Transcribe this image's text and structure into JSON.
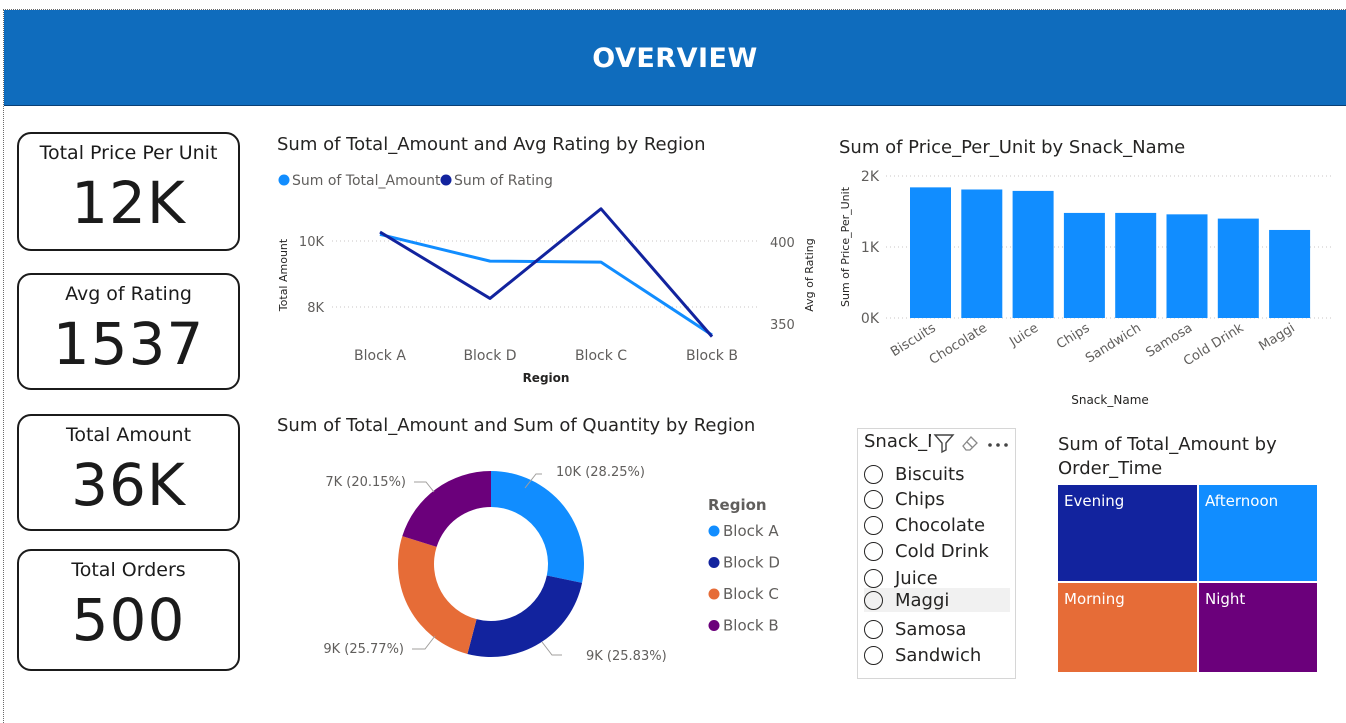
{
  "header": {
    "title": "OVERVIEW"
  },
  "kpis": [
    {
      "label": "Total Price Per Unit",
      "value": "12K"
    },
    {
      "label": "Avg of Rating",
      "value": "1537"
    },
    {
      "label": "Total Amount",
      "value": "36K"
    },
    {
      "label": "Total Orders",
      "value": "500"
    }
  ],
  "colors": {
    "header_bg": "#0f6cbd",
    "series_light": "#118dff",
    "series_dark": "#12239e",
    "orange": "#e66c37",
    "purple": "#6b007b"
  },
  "line_chart": {
    "title": "Sum of Total_Amount and Avg Rating by Region"
  },
  "bar_chart": {
    "title": "Sum of Price_Per_Unit by Snack_Name"
  },
  "donut_chart": {
    "title": "Sum of Total_Amount and Sum of Quantity by Region"
  },
  "treemap_chart": {
    "title_line1": "Sum of Total_Amount by",
    "title_line2": "Order_Time"
  },
  "slicer": {
    "title": "Snack_Name",
    "items": [
      "Biscuits",
      "Chips",
      "Chocolate",
      "Cold Drink",
      "Juice",
      "Maggi",
      "Samosa",
      "Sandwich"
    ]
  },
  "chart_data": [
    {
      "type": "line",
      "title": "Sum of Total_Amount and Avg Rating by Region",
      "categories": [
        "Block A",
        "Block D",
        "Block C",
        "Block B"
      ],
      "xlabel": "Region",
      "ylabel": "Total Amount",
      "y2label": "Avg of Rating",
      "yticks": [
        "8K",
        "10K"
      ],
      "y2ticks": [
        "350",
        "400"
      ],
      "legend_position": "top-left",
      "series": [
        {
          "name": "Sum of Total_Amount",
          "axis": "left",
          "color": "#118dff",
          "values": [
            10200,
            9390,
            9360,
            7150
          ]
        },
        {
          "name": "Sum of Rating",
          "axis": "right",
          "color": "#12239e",
          "values": [
            406,
            366,
            420,
            343
          ]
        }
      ]
    },
    {
      "type": "bar",
      "title": "Sum of Price_Per_Unit by Snack_Name",
      "categories": [
        "Biscuits",
        "Chocolate",
        "Juice",
        "Chips",
        "Sandwich",
        "Samosa",
        "Cold Drink",
        "Maggi"
      ],
      "values": [
        1840,
        1810,
        1790,
        1480,
        1480,
        1460,
        1400,
        1240
      ],
      "xlabel": "Snack_Name",
      "ylabel": "Sum of Price_Per_Unit",
      "yticks": [
        "0K",
        "1K",
        "2K"
      ],
      "ylim": [
        0,
        2000
      ],
      "color": "#118dff"
    },
    {
      "type": "pie",
      "title": "Sum of Total_Amount and Sum of Quantity by Region",
      "legend_title": "Region",
      "legend_position": "right",
      "slices": [
        {
          "name": "Block A",
          "percent": 28.25,
          "label": "10K (28.25%)",
          "color": "#118dff"
        },
        {
          "name": "Block D",
          "percent": 25.83,
          "label": "9K (25.83%)",
          "color": "#12239e"
        },
        {
          "name": "Block C",
          "percent": 25.77,
          "label": "9K (25.77%)",
          "color": "#e66c37"
        },
        {
          "name": "Block B",
          "percent": 20.15,
          "label": "7K (20.15%)",
          "color": "#6b007b"
        }
      ]
    },
    {
      "type": "treemap",
      "title": "Sum of Total_Amount by Order_Time",
      "cells": [
        {
          "name": "Evening",
          "color": "#12239e"
        },
        {
          "name": "Afternoon",
          "color": "#118dff"
        },
        {
          "name": "Morning",
          "color": "#e66c37"
        },
        {
          "name": "Night",
          "color": "#6b007b"
        }
      ]
    }
  ]
}
